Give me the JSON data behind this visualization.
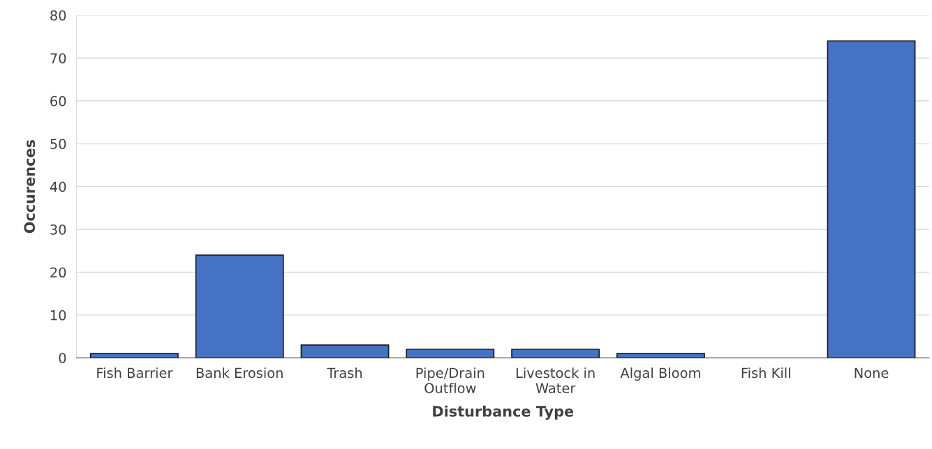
{
  "chart_data": {
    "type": "bar",
    "xlabel": "Disturbance Type",
    "ylabel": "Occurences",
    "categories": [
      "Fish Barrier",
      "Bank Erosion",
      "Trash",
      "Pipe/Drain Outflow",
      "Livestock in Water",
      "Algal Bloom",
      "Fish Kill",
      "None"
    ],
    "values": [
      1,
      24,
      3,
      2,
      2,
      1,
      0,
      74
    ],
    "color": "#4472c4",
    "ylim": [
      0,
      80
    ],
    "yticks": [
      0,
      10,
      20,
      30,
      40,
      50,
      60,
      70,
      80
    ],
    "grid": "y",
    "legend": false
  }
}
